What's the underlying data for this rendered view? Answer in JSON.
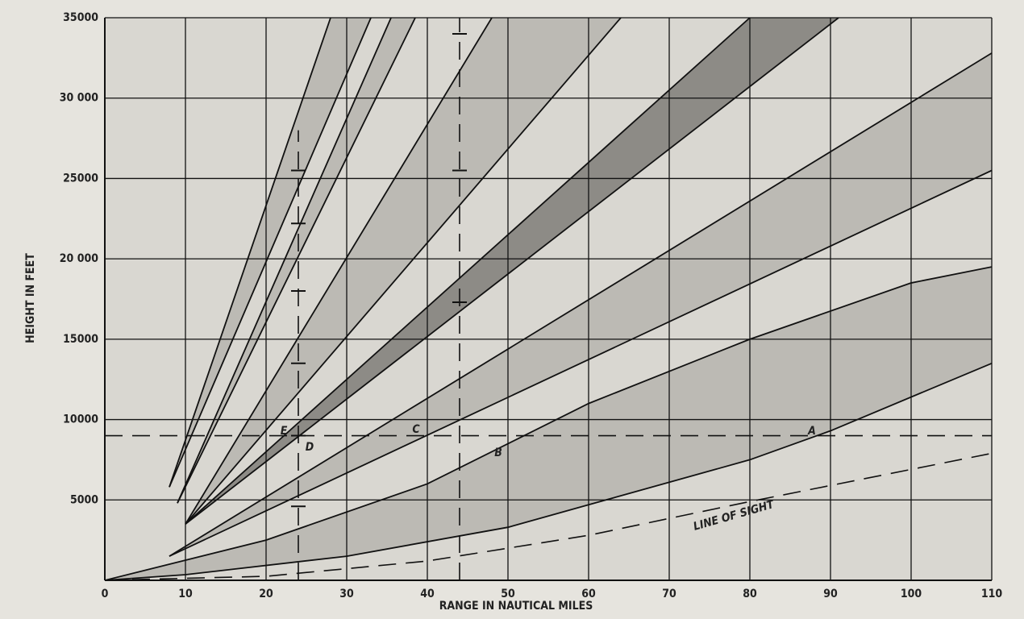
{
  "chart_data": {
    "type": "coverage",
    "xlabel": "RANGE IN NAUTICAL MILES",
    "ylabel": "HEIGHT IN FEET",
    "xlim": [
      0,
      110
    ],
    "ylim": [
      0,
      35000
    ],
    "xticks": [
      0,
      10,
      20,
      30,
      40,
      50,
      60,
      70,
      80,
      90,
      100,
      110
    ],
    "yticks": [
      5000,
      10000,
      15000,
      {
        "value": 20000,
        "label": "20 000"
      },
      25000,
      {
        "value": 30000,
        "label": "30 000"
      },
      35000
    ],
    "grid": true,
    "background": "#d9d7d1",
    "lobes": [
      {
        "color": "#bcbab4",
        "lower": {
          "x": [
            0,
            10,
            30,
            50,
            60,
            80,
            90,
            110
          ],
          "values": [
            0,
            350,
            1500,
            3300,
            4700,
            7500,
            9300,
            13500
          ]
        },
        "upper": {
          "x": [
            0,
            20,
            40,
            60,
            80,
            100,
            110
          ],
          "values": [
            0,
            2500,
            6000,
            11000,
            15000,
            18500,
            19500
          ]
        }
      },
      {
        "color": "#bcbab4",
        "lower": {
          "x": [
            8,
            110
          ],
          "values": [
            1500,
            25500
          ]
        },
        "upper": {
          "x": [
            8,
            110
          ],
          "values": [
            1500,
            32800
          ]
        }
      },
      {
        "color": "#8d8b86",
        "lower": {
          "x": [
            10,
            91
          ],
          "values": [
            3500,
            35000
          ]
        },
        "upper": {
          "x": [
            10,
            80
          ],
          "values": [
            3500,
            35000
          ]
        }
      },
      {
        "color": "#bcbab4",
        "lower": {
          "x": [
            10,
            64
          ],
          "values": [
            3500,
            35000
          ]
        },
        "upper": {
          "x": [
            10,
            48
          ],
          "values": [
            3500,
            35000
          ]
        }
      },
      {
        "color": "#bcbab4",
        "lower": {
          "x": [
            9,
            38.5
          ],
          "values": [
            4800,
            35000
          ]
        },
        "upper": {
          "x": [
            9,
            35.5
          ],
          "values": [
            4800,
            35000
          ]
        }
      },
      {
        "color": "#bcbab4",
        "lower": {
          "x": [
            8,
            33
          ],
          "values": [
            5800,
            35000
          ]
        },
        "upper": {
          "x": [
            8,
            28
          ],
          "values": [
            5800,
            35000
          ]
        }
      }
    ],
    "reference_lines": [
      {
        "x": [
          0,
          110
        ],
        "values": [
          9000,
          9000
        ]
      },
      {
        "x": [
          24,
          24
        ],
        "values": [
          0,
          28000
        ]
      },
      {
        "x": [
          44,
          44
        ],
        "values": [
          0,
          35000
        ]
      },
      {
        "x": [
          0,
          20,
          40,
          60,
          80,
          110
        ],
        "values": [
          0,
          250,
          1200,
          2800,
          4900,
          7900
        ]
      }
    ],
    "markers": {
      "x": [
        24,
        24,
        24,
        24,
        24,
        24,
        44,
        44,
        44
      ],
      "values": [
        4600,
        9000,
        13500,
        18000,
        22200,
        25500,
        17300,
        25500,
        34000
      ]
    },
    "annotations": [
      "A",
      "B",
      "C",
      "D",
      "E",
      "LINE OF SIGHT"
    ]
  }
}
